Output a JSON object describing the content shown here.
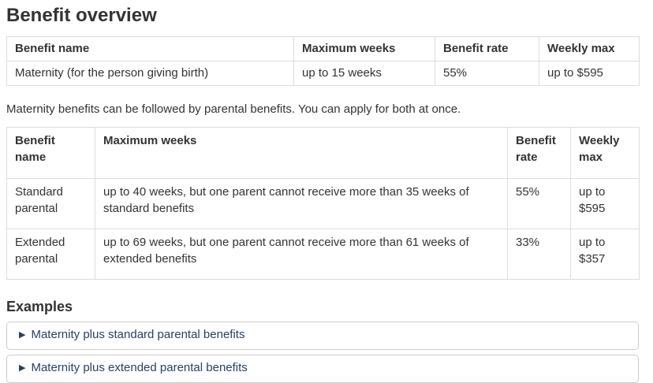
{
  "page": {
    "title": "Benefit overview"
  },
  "overview_table": {
    "headers": [
      "Benefit name",
      "Maximum weeks",
      "Benefit rate",
      "Weekly max"
    ],
    "rows": [
      [
        "Maternity (for the person giving birth)",
        "up to 15 weeks",
        "55%",
        "up to $595"
      ]
    ]
  },
  "note": "Maternity benefits can be followed by parental benefits. You can apply for both at once.",
  "parental_table": {
    "headers": [
      "Benefit name",
      "Maximum weeks",
      "Benefit rate",
      "Weekly max"
    ],
    "rows": [
      [
        "Standard parental",
        "up to 40 weeks, but one parent cannot receive more than 35 weeks of standard benefits",
        "55%",
        "up to $595"
      ],
      [
        "Extended parental",
        "up to 69 weeks, but one parent cannot receive more than 61 weeks of extended benefits",
        "33%",
        "up to $357"
      ]
    ]
  },
  "examples": {
    "heading": "Examples",
    "expander_icon": "▶",
    "items": [
      {
        "label": "Maternity plus standard parental benefits"
      },
      {
        "label": "Maternity plus extended parental benefits"
      }
    ]
  },
  "colors": {
    "link": "#284162",
    "text": "#333333",
    "table_border": "#dddddd",
    "expander_border": "#cccccc"
  }
}
